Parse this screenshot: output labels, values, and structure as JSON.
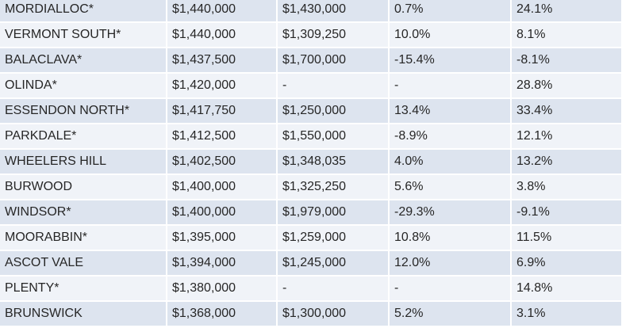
{
  "table": {
    "rows": [
      [
        "MORDIALLOC*",
        "$1,440,000",
        "$1,430,000",
        "0.7%",
        "24.1%"
      ],
      [
        "VERMONT SOUTH*",
        "$1,440,000",
        "$1,309,250",
        "10.0%",
        "8.1%"
      ],
      [
        "BALACLAVA*",
        "$1,437,500",
        "$1,700,000",
        "-15.4%",
        "-8.1%"
      ],
      [
        "OLINDA*",
        "$1,420,000",
        "-",
        "-",
        "28.8%"
      ],
      [
        "ESSENDON NORTH*",
        "$1,417,750",
        "$1,250,000",
        "13.4%",
        "33.4%"
      ],
      [
        "PARKDALE*",
        "$1,412,500",
        "$1,550,000",
        "-8.9%",
        "12.1%"
      ],
      [
        "WHEELERS HILL",
        "$1,402,500",
        "$1,348,035",
        "4.0%",
        "13.2%"
      ],
      [
        "BURWOOD",
        "$1,400,000",
        "$1,325,250",
        "5.6%",
        "3.8%"
      ],
      [
        "WINDSOR*",
        "$1,400,000",
        "$1,979,000",
        "-29.3%",
        "-9.1%"
      ],
      [
        "MOORABBIN*",
        "$1,395,000",
        "$1,259,000",
        "10.8%",
        "11.5%"
      ],
      [
        "ASCOT VALE",
        "$1,394,000",
        "$1,245,000",
        "12.0%",
        "6.9%"
      ],
      [
        "PLENTY*",
        "$1,380,000",
        "-",
        "-",
        "14.8%"
      ],
      [
        "BRUNSWICK",
        "$1,368,000",
        "$1,300,000",
        "5.2%",
        "3.1%"
      ]
    ]
  },
  "colors": {
    "row_band_dark": "#dde4ef",
    "row_band_light": "#f0f3f8",
    "text": "#262626",
    "top_accent": "#4a78b8"
  }
}
